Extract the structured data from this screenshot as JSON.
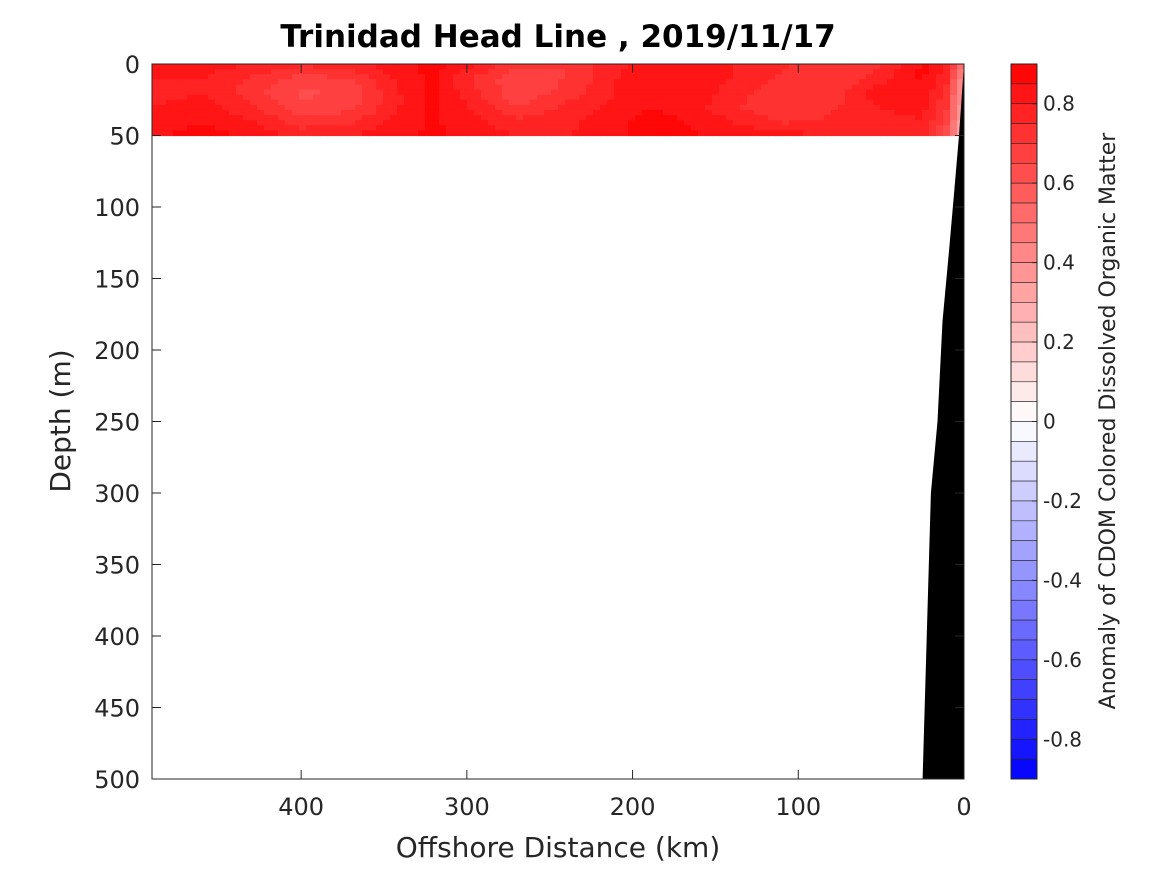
{
  "chart_data": {
    "type": "heatmap",
    "title": "Trinidad Head Line , 2019/11/17",
    "xlabel": "Offshore Distance (km)",
    "ylabel": "Depth (m)",
    "xlim": [
      490,
      0
    ],
    "ylim": [
      500,
      0
    ],
    "x_ticks": [
      "400",
      "300",
      "200",
      "100",
      "0"
    ],
    "y_ticks": [
      "0",
      "50",
      "100",
      "150",
      "200",
      "250",
      "300",
      "350",
      "400",
      "450",
      "500"
    ],
    "colorbar": {
      "label": "Anomaly of CDOM Colored Dissolved Organic Matter",
      "range": [
        -0.9,
        0.9
      ],
      "level_step": 0.05,
      "ticks": [
        "0.8",
        "0.6",
        "0.4",
        "0.2",
        "0",
        "-0.2",
        "-0.4",
        "-0.6",
        "-0.8"
      ],
      "low_color": "#0000ff",
      "zero_color": "#ffffff",
      "high_color": "#ff0000"
    },
    "data_extent": {
      "x": [
        0,
        490
      ],
      "depth": [
        0,
        50
      ]
    },
    "anomaly_field": {
      "x": [
        490,
        460,
        430,
        400,
        370,
        340,
        320,
        300,
        270,
        240,
        210,
        190,
        170,
        140,
        110,
        80,
        50,
        25,
        10,
        3
      ],
      "depth": [
        0,
        10,
        20,
        30,
        40,
        50
      ],
      "values": [
        [
          0.84,
          0.83,
          0.8,
          0.76,
          0.78,
          0.84,
          0.87,
          0.82,
          0.72,
          0.7,
          0.78,
          0.84,
          0.83,
          0.8,
          0.76,
          0.72,
          0.74,
          0.86,
          0.8,
          0.55
        ],
        [
          0.8,
          0.8,
          0.74,
          0.68,
          0.7,
          0.82,
          0.86,
          0.76,
          0.66,
          0.7,
          0.8,
          0.84,
          0.84,
          0.8,
          0.74,
          0.7,
          0.78,
          0.86,
          0.76,
          0.45
        ],
        [
          0.78,
          0.8,
          0.72,
          0.64,
          0.66,
          0.8,
          0.86,
          0.78,
          0.66,
          0.72,
          0.8,
          0.84,
          0.84,
          0.78,
          0.7,
          0.72,
          0.84,
          0.84,
          0.72,
          0.4
        ],
        [
          0.8,
          0.82,
          0.76,
          0.66,
          0.68,
          0.8,
          0.86,
          0.8,
          0.7,
          0.76,
          0.82,
          0.85,
          0.84,
          0.76,
          0.7,
          0.74,
          0.8,
          0.82,
          0.7,
          0.4
        ],
        [
          0.82,
          0.84,
          0.8,
          0.72,
          0.74,
          0.82,
          0.86,
          0.82,
          0.76,
          0.78,
          0.84,
          0.86,
          0.85,
          0.8,
          0.74,
          0.76,
          0.78,
          0.8,
          0.66,
          0.35
        ],
        [
          0.84,
          0.88,
          0.84,
          0.78,
          0.8,
          0.84,
          0.86,
          0.84,
          0.8,
          0.8,
          0.84,
          0.88,
          0.86,
          0.84,
          0.82,
          0.8,
          0.76,
          0.76,
          0.62,
          0.3
        ]
      ]
    },
    "bathymetry": {
      "color": "#000000",
      "x": [
        0,
        3,
        6,
        9,
        13,
        16,
        20,
        25
      ],
      "depth": [
        0,
        50,
        90,
        130,
        180,
        250,
        300,
        500
      ]
    }
  }
}
